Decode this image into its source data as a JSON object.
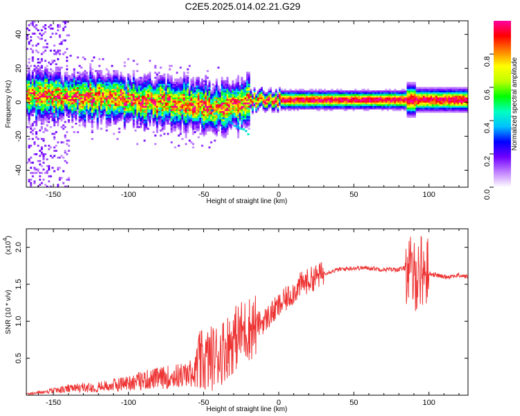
{
  "title": "C2E5.2025.014.02.21.G29",
  "chart_data": [
    {
      "type": "heatmap",
      "xlabel": "Height of straight line (km)",
      "ylabel": "Frequency (Hz)",
      "xlim": [
        -168,
        126
      ],
      "ylim": [
        -50,
        48
      ],
      "x_ticks": [
        -150,
        -100,
        -50,
        0,
        50,
        100
      ],
      "y_ticks": [
        -40,
        -20,
        0,
        20,
        40
      ],
      "grid": false,
      "colorbar": {
        "label": "Normalized spectral amplitude",
        "range": [
          0,
          1
        ],
        "ticks": [
          "0.0",
          "0.2",
          "0.4",
          "0.6",
          "0.8"
        ],
        "colors": [
          "#ffffff",
          "#c080ff",
          "#7000ff",
          "#0000ff",
          "#00c0ff",
          "#00ffc0",
          "#00ff00",
          "#c0ff00",
          "#ffff00",
          "#ff8000",
          "#ff0000",
          "#ff00a0"
        ]
      },
      "ridge": {
        "x": [
          -168,
          -150,
          -125,
          -100,
          -80,
          -60,
          -45,
          -35,
          -25,
          -15,
          0,
          20,
          50,
          80,
          100,
          126
        ],
        "y": [
          4,
          3,
          3,
          1,
          0,
          -1,
          -4,
          -2,
          -1,
          1,
          1,
          1,
          1,
          1,
          1,
          1
        ]
      }
    },
    {
      "type": "line",
      "xlabel": "Height of straight line (km)",
      "ylabel": "SNR (10 * v/v)",
      "yscale_label": "(x10",
      "yscale_exponent": "4",
      "xlim": [
        -168,
        126
      ],
      "ylim": [
        0,
        2.25
      ],
      "x_ticks": [
        -150,
        -100,
        -50,
        0,
        50,
        100
      ],
      "y_ticks": [
        "0.5",
        "1.0",
        "1.5",
        "2.0"
      ],
      "grid": false,
      "series": [
        {
          "color": "#ee3333",
          "x": [
            -168,
            -160,
            -150,
            -140,
            -130,
            -120,
            -110,
            -100,
            -90,
            -80,
            -70,
            -60,
            -50,
            -45,
            -40,
            -35,
            -30,
            -25,
            -20,
            -15,
            -10,
            -5,
            0,
            5,
            10,
            15,
            20,
            25,
            30,
            40,
            50,
            60,
            70,
            80,
            85,
            90,
            95,
            100,
            110,
            120,
            126
          ],
          "y": [
            0.02,
            0.04,
            0.07,
            0.1,
            0.12,
            0.13,
            0.16,
            0.2,
            0.24,
            0.27,
            0.3,
            0.33,
            0.45,
            0.5,
            0.55,
            0.65,
            0.75,
            0.85,
            0.9,
            0.95,
            1.0,
            1.1,
            1.2,
            1.3,
            1.4,
            1.5,
            1.55,
            1.6,
            1.65,
            1.7,
            1.72,
            1.72,
            1.7,
            1.7,
            1.72,
            1.6,
            1.7,
            1.65,
            1.6,
            1.62,
            1.6
          ]
        }
      ]
    }
  ]
}
